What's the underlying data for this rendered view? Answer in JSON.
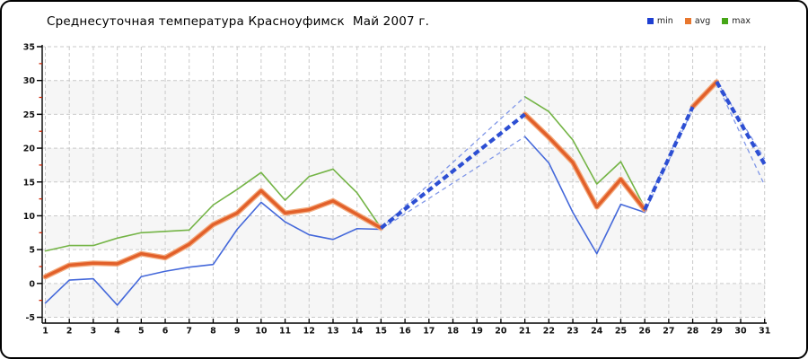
{
  "header": {
    "title": "Среднесуточная температура Красноуфимск  Май 2007 г."
  },
  "legend": [
    {
      "label": "min",
      "color": "#1e3fd2"
    },
    {
      "label": "avg",
      "color": "#e8772e"
    },
    {
      "label": "max",
      "color": "#46a617"
    }
  ],
  "chart_data": {
    "type": "line",
    "title": "Среднесуточная температура Красноуфимск  Май 2007 г.",
    "xlabel": "",
    "ylabel": "",
    "x_ticks": [
      1,
      2,
      3,
      4,
      5,
      6,
      7,
      8,
      9,
      10,
      11,
      12,
      13,
      14,
      15,
      16,
      17,
      18,
      19,
      20,
      21,
      22,
      23,
      24,
      25,
      26,
      27,
      28,
      29,
      30,
      31
    ],
    "y_ticks": [
      -5,
      0,
      5,
      10,
      15,
      20,
      25,
      30,
      35
    ],
    "x_range": [
      1,
      31
    ],
    "y_range": [
      -5,
      35
    ],
    "y_minor_tick_step": 2.5,
    "grid": true,
    "legend_position": "top-right",
    "note": "Days 16-20, 27 and 30 have no measured data; series are drawn as straight blue dashed segments across these gaps, ending at day 31 dashed endpoints.",
    "gap_segments": [
      {
        "from": 15,
        "to": 21
      },
      {
        "from": 26,
        "to": 28
      },
      {
        "from": 29,
        "to": 31
      }
    ],
    "colors": {
      "grid": "#c9c9c9",
      "axis": "#000000",
      "minor_tick": "#cc2200",
      "band": "#f6f6f6",
      "text": "#111111"
    },
    "series": [
      {
        "name": "max",
        "color": "#74b446",
        "width": 1.6,
        "gap_color": "#8097e8",
        "gap_width": 1.3,
        "gap_dash": "5 4",
        "values": [
          4.8,
          5.6,
          5.6,
          6.7,
          7.5,
          7.7,
          7.9,
          11.6,
          13.9,
          16.4,
          12.3,
          15.8,
          16.9,
          13.4,
          8.2,
          null,
          null,
          null,
          null,
          null,
          27.6,
          25.4,
          21.2,
          14.7,
          18.0,
          11.2,
          null,
          26.4,
          29.9,
          null,
          18.4
        ]
      },
      {
        "name": "min",
        "color": "#4468da",
        "width": 1.6,
        "gap_color": "#8097e8",
        "gap_width": 1.3,
        "gap_dash": "5 4",
        "values": [
          -2.9,
          0.5,
          0.7,
          -3.2,
          1.0,
          1.8,
          2.4,
          2.8,
          8.0,
          12.0,
          9.1,
          7.2,
          6.5,
          8.1,
          8.0,
          null,
          null,
          null,
          null,
          null,
          21.7,
          17.8,
          10.5,
          4.4,
          11.7,
          10.5,
          null,
          25.8,
          29.6,
          null,
          14.5
        ]
      },
      {
        "name": "avg",
        "color": "#e2602a",
        "glow": "#f3aa7d",
        "width": 3.4,
        "glow_width": 6,
        "gap_color": "#2d4fd3",
        "gap_width": 4.2,
        "gap_dash": "7 4",
        "values": [
          1.0,
          2.7,
          3.0,
          2.9,
          4.4,
          3.8,
          5.8,
          8.7,
          10.4,
          13.7,
          10.4,
          10.9,
          12.2,
          10.2,
          8.2,
          null,
          null,
          null,
          null,
          null,
          25.0,
          21.6,
          17.9,
          11.3,
          15.4,
          10.9,
          null,
          26.1,
          29.8,
          null,
          17.6
        ]
      }
    ]
  }
}
